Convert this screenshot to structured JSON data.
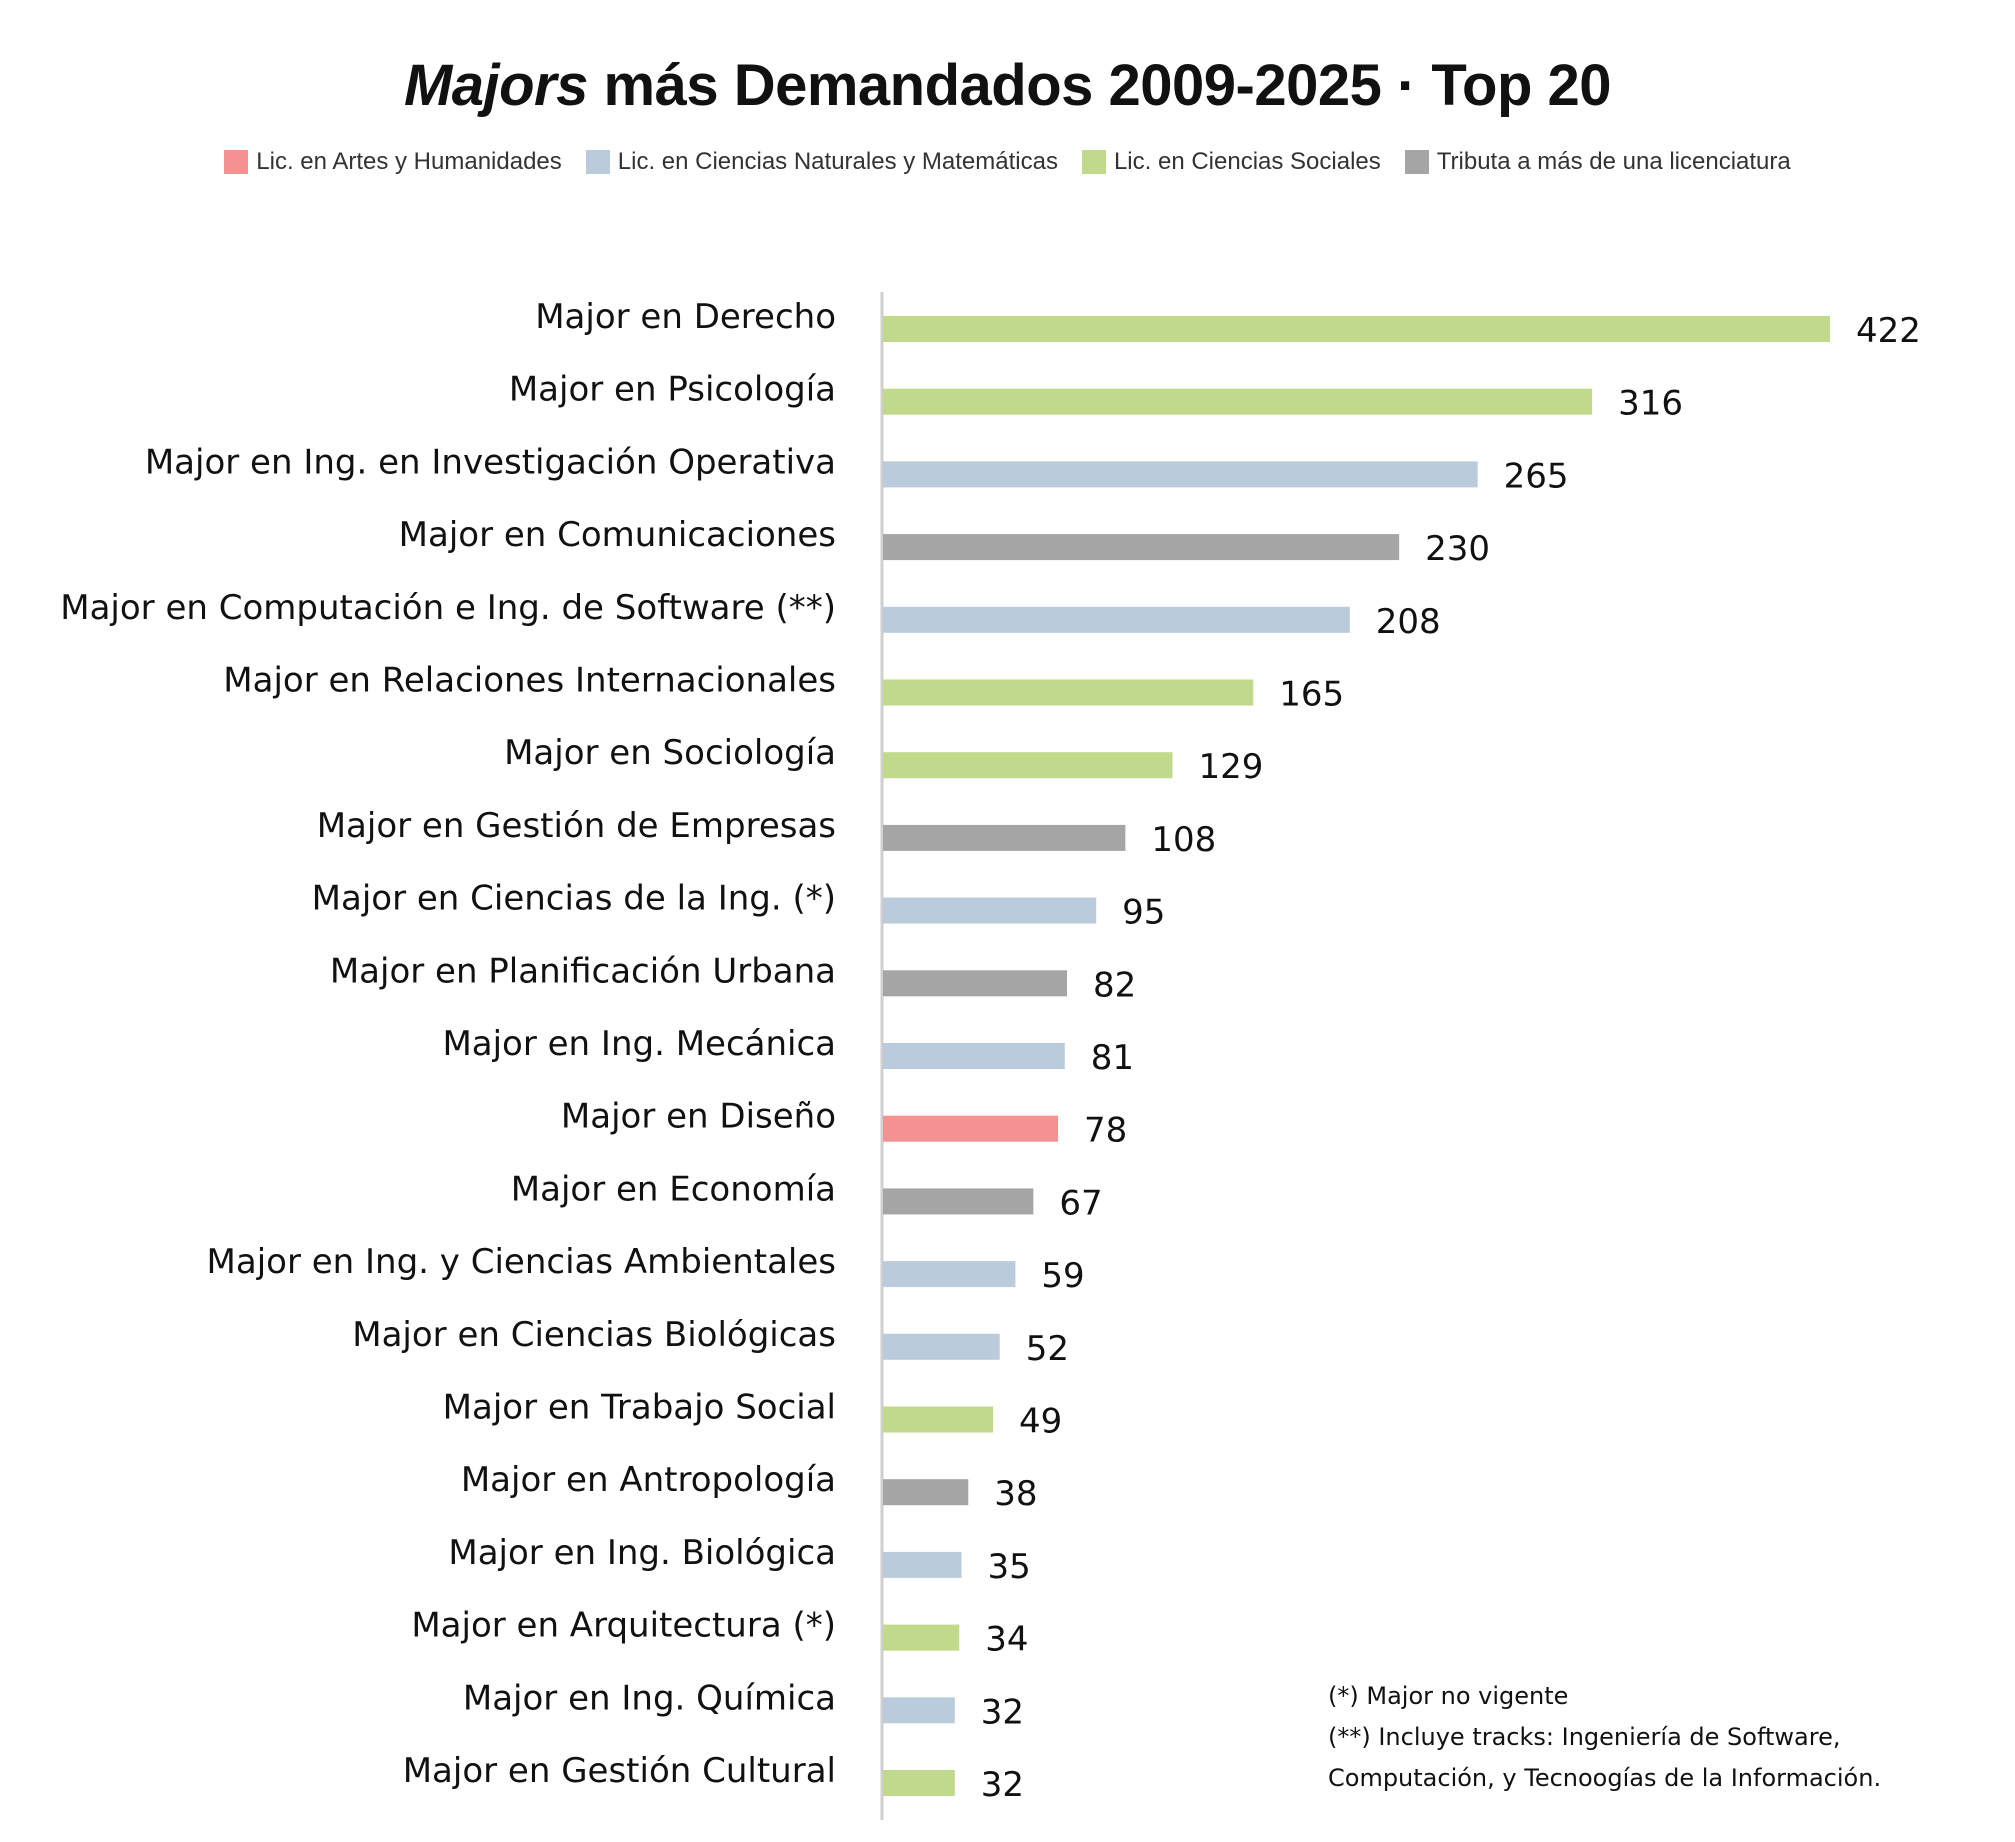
{
  "title": {
    "italic": "Majors",
    "rest": " más Demandados 2009-2025 · Top 20"
  },
  "legend": [
    {
      "label": "Lic. en Artes y Humanidades",
      "color": "#f49191"
    },
    {
      "label": "Lic. en Ciencias Naturales y Matemáticas",
      "color": "#bacbdb"
    },
    {
      "label": "Lic. en Ciencias Sociales",
      "color": "#c0d98a"
    },
    {
      "label": "Tributa a más de una licenciatura",
      "color": "#a5a5a5"
    }
  ],
  "chart_data": {
    "type": "bar",
    "orientation": "horizontal",
    "title": "Majors más Demandados 2009-2025 · Top 20",
    "xlim": [
      0,
      422
    ],
    "grid": false,
    "legend_placement": "top",
    "categories": [
      "Major en Derecho",
      "Major en Psicología",
      "Major en Ing. en Investigación Operativa",
      "Major en Comunicaciones",
      "Major en Computación e Ing. de Software (**)",
      "Major en Relaciones Internacionales",
      "Major en Sociología",
      "Major en Gestión de Empresas",
      "Major en Ciencias de la Ing. (*)",
      "Major en Planificación Urbana",
      "Major en Ing. Mecánica",
      "Major en Diseño",
      "Major en Economía",
      "Major en Ing. y Ciencias Ambientales",
      "Major en Ciencias Biológicas",
      "Major en Trabajo Social",
      "Major en Antropología",
      "Major en Ing. Biológica",
      "Major en Arquitectura (*)",
      "Major en Ing. Química",
      "Major en Gestión Cultural"
    ],
    "values": [
      422,
      316,
      265,
      230,
      208,
      165,
      129,
      108,
      95,
      82,
      81,
      78,
      67,
      59,
      52,
      49,
      38,
      35,
      34,
      32,
      32
    ],
    "groups": [
      2,
      2,
      1,
      3,
      1,
      2,
      2,
      3,
      1,
      3,
      1,
      0,
      3,
      1,
      1,
      2,
      3,
      1,
      2,
      1,
      2
    ]
  },
  "notes": [
    "(*) Major no vigente",
    "(**) Incluye tracks: Ingeniería de Software,",
    "Computación, y Tecnoogías de la Información."
  ]
}
